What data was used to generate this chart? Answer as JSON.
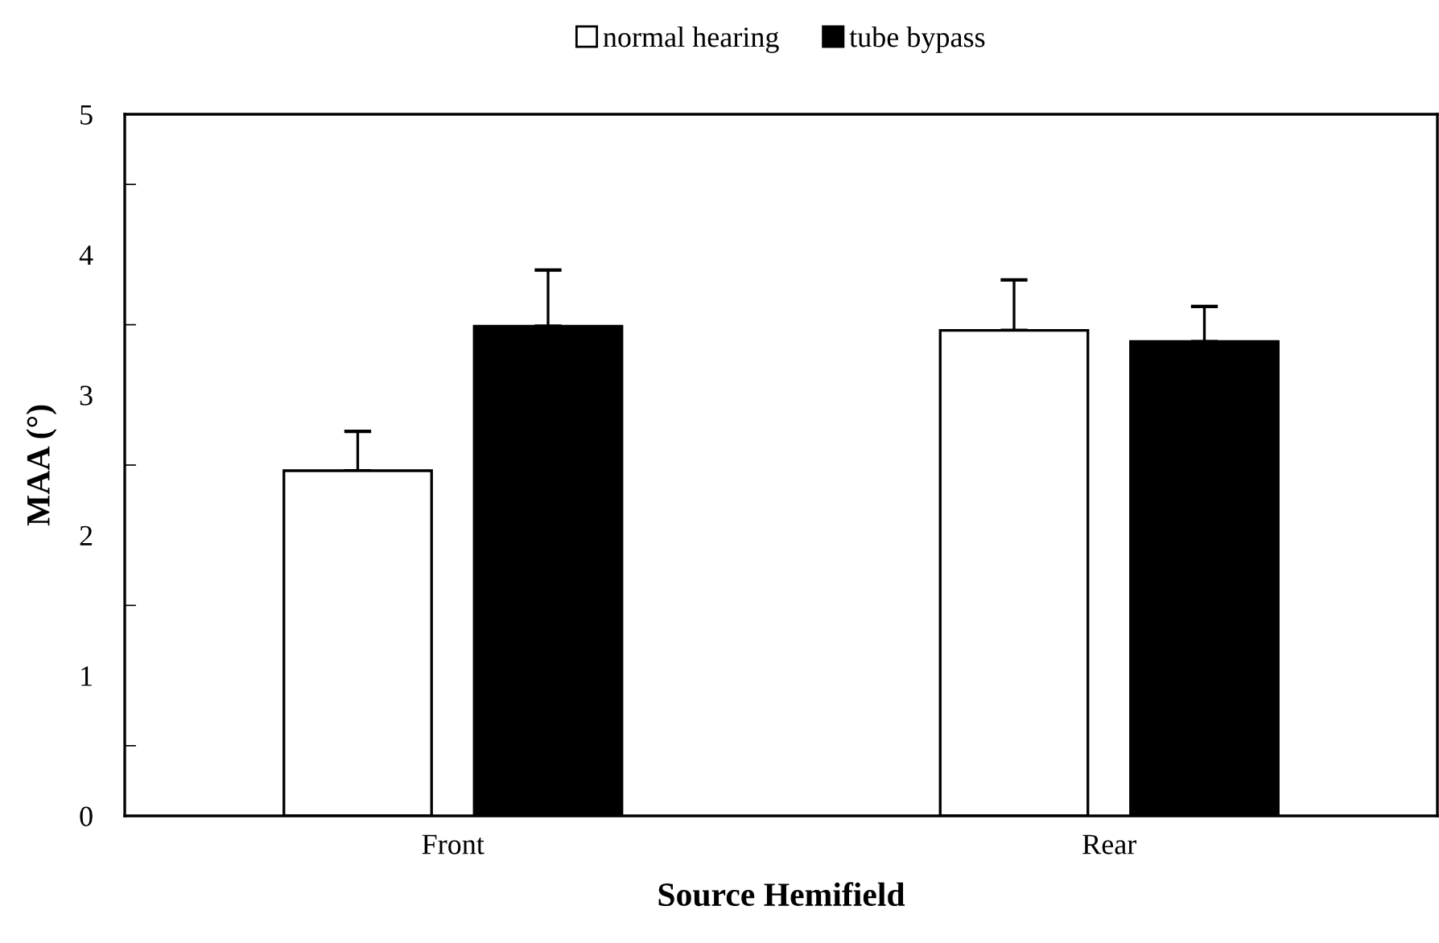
{
  "chart_data": {
    "type": "bar",
    "xlabel": "Source Hemifield",
    "ylabel": "MAA (°)",
    "categories": [
      "Front",
      "Rear"
    ],
    "series": [
      {
        "name": "normal hearing",
        "color": "#ffffff",
        "values": [
          2.46,
          3.46
        ],
        "errors": [
          [
            2.46,
            2.74
          ],
          [
            3.46,
            3.82
          ]
        ]
      },
      {
        "name": "tube bypass",
        "color": "#000000",
        "values": [
          3.49,
          3.38
        ],
        "errors": [
          [
            3.49,
            3.89
          ],
          [
            3.38,
            3.63
          ]
        ]
      }
    ],
    "ylim": [
      0,
      5
    ],
    "yticks": [
      0,
      1,
      2,
      3,
      4,
      5
    ],
    "grid": false,
    "legend": "top"
  }
}
